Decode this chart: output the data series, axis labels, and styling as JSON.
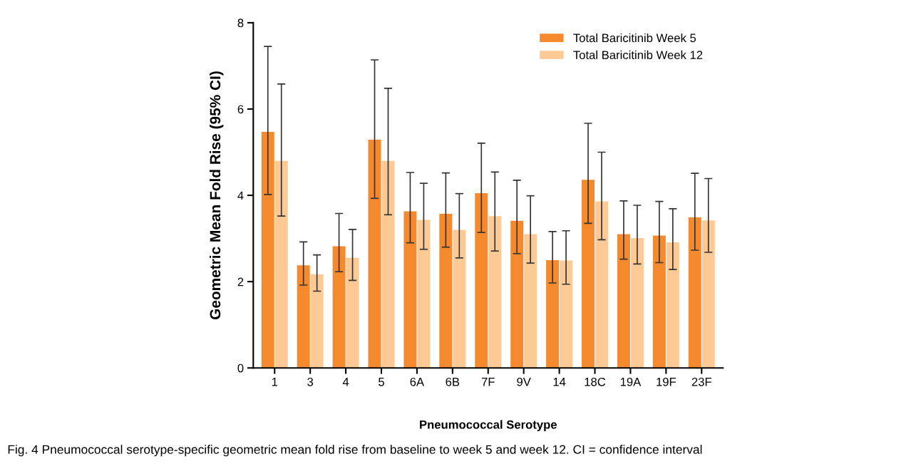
{
  "chart_data": {
    "type": "bar",
    "ylabel": "Geometric Mean Fold Rise (95% CI)",
    "xlabel": "Pneumococcal Serotype",
    "annotations": [
      "Fig. 4 Pneumococcal serotype-specific geometric mean fold rise from baseline to week 5 and week 12. CI = confidence interval"
    ],
    "categories": [
      "1",
      "3",
      "4",
      "5",
      "6A",
      "6B",
      "7F",
      "9V",
      "14",
      "18C",
      "19A",
      "19F",
      "23F"
    ],
    "series": [
      {
        "name": "Total Baricitinib Week 5",
        "color": "#f5892d",
        "values": [
          5.47,
          2.38,
          2.82,
          5.29,
          3.63,
          3.57,
          4.05,
          3.41,
          2.5,
          4.36,
          3.1,
          3.07,
          3.49
        ],
        "errors": [
          [
            4.02,
            7.45
          ],
          [
            1.92,
            2.92
          ],
          [
            2.23,
            3.58
          ],
          [
            3.93,
            7.14
          ],
          [
            2.9,
            4.53
          ],
          [
            2.8,
            4.52
          ],
          [
            3.14,
            5.21
          ],
          [
            2.65,
            4.35
          ],
          [
            1.97,
            3.16
          ],
          [
            3.35,
            5.67
          ],
          [
            2.52,
            3.87
          ],
          [
            2.44,
            3.86
          ],
          [
            2.73,
            4.51
          ]
        ]
      },
      {
        "name": "Total Baricitinib Week 12",
        "color": "#fdca96",
        "values": [
          4.8,
          2.17,
          2.55,
          4.8,
          3.43,
          3.2,
          3.52,
          3.1,
          2.49,
          3.86,
          3.01,
          2.91,
          3.42
        ],
        "errors": [
          [
            3.52,
            6.58
          ],
          [
            1.78,
            2.62
          ],
          [
            2.03,
            3.21
          ],
          [
            3.55,
            6.48
          ],
          [
            2.75,
            4.28
          ],
          [
            2.55,
            4.04
          ],
          [
            2.71,
            4.54
          ],
          [
            2.43,
            3.99
          ],
          [
            1.94,
            3.18
          ],
          [
            2.97,
            5.0
          ],
          [
            2.41,
            3.77
          ],
          [
            2.28,
            3.69
          ],
          [
            2.68,
            4.39
          ]
        ]
      }
    ],
    "ylim": [
      0,
      8
    ],
    "yticks": [
      0,
      2,
      4,
      6,
      8
    ],
    "grid": false,
    "legend": "top right"
  }
}
